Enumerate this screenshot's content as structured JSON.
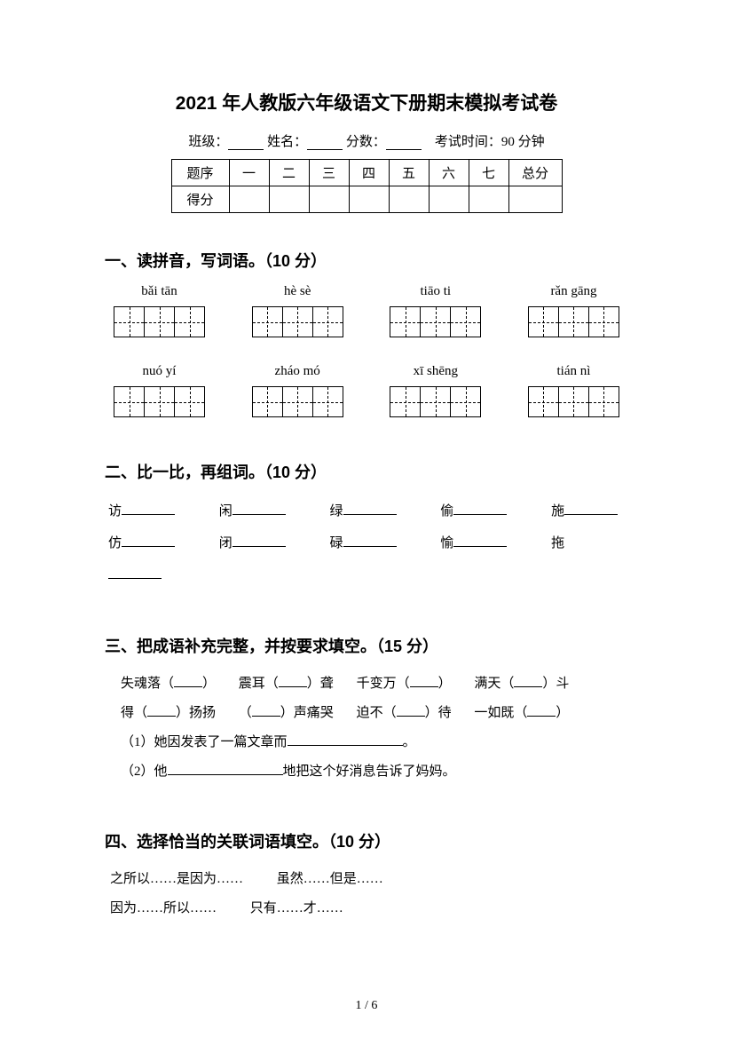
{
  "title": "2021 年人教版六年级语文下册期末模拟考试卷",
  "info": {
    "class_label": "班级：",
    "name_label": "姓名：",
    "score_label": "分数：",
    "exam_time": "考试时间：90 分钟"
  },
  "score_table": {
    "row1_label": "题序",
    "row2_label": "得分",
    "columns": [
      "一",
      "二",
      "三",
      "四",
      "五",
      "六",
      "七"
    ],
    "total_label": "总分"
  },
  "section1": {
    "heading": "一、读拼音，写词语。（10 分）",
    "row1": [
      "bǎi tān",
      "hè sè",
      "tiāo ti",
      "rǎn gāng"
    ],
    "row2": [
      "nuó yí",
      "zháo mó",
      "xī shēng",
      "tián nì"
    ]
  },
  "section2": {
    "heading": "二、比一比，再组词。（10 分）",
    "pairs_row1": [
      "访",
      "闲",
      "绿",
      "偷",
      "施"
    ],
    "pairs_row2": [
      "仿",
      "闭",
      "碌",
      "愉",
      "拖"
    ]
  },
  "section3": {
    "heading": "三、把成语补充完整，并按要求填空。（15 分）",
    "idioms_line1": {
      "i1_pre": "失魂落（",
      "i1_post": "）",
      "i2_pre": "震耳（",
      "i2_post": "）聋",
      "i3_pre": "千变万（",
      "i3_post": "）",
      "i4_pre": "满天（",
      "i4_post": "）斗"
    },
    "idioms_line2": {
      "i1_pre": "得（",
      "i1_post": "）扬扬",
      "i2_pre": "（",
      "i2_post": "）声痛哭",
      "i3_pre": "迫不（",
      "i3_post": "）待",
      "i4_pre": "一如既（",
      "i4_post": "）"
    },
    "fill1_pre": "（1）她因发表了一篇文章而",
    "fill1_post": "。",
    "fill2_pre": "（2）他",
    "fill2_post": "地把这个好消息告诉了妈妈。"
  },
  "section4": {
    "heading": "四、选择恰当的关联词语填空。（10 分）",
    "line1_a": "之所以……是因为……",
    "line1_b": "虽然……但是……",
    "line2_a": "因为……所以……",
    "line2_b": "只有……才……"
  },
  "page_number": "1 / 6"
}
